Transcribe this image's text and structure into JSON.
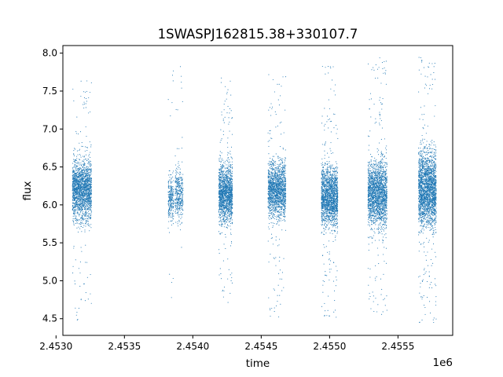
{
  "chart_data": {
    "type": "scatter",
    "title": "1SWASPJ162815.38+330107.7",
    "xlabel": "time",
    "ylabel": "flux",
    "x_offset_label": "1e6",
    "xlim": [
      2.45305,
      2.4559
    ],
    "ylim": [
      4.28,
      8.1
    ],
    "x_ticks": [
      2.453,
      2.4535,
      2.454,
      2.4545,
      2.455,
      2.4555
    ],
    "x_tick_labels": [
      "2.4530",
      "2.4535",
      "2.4540",
      "2.4545",
      "2.4550",
      "2.4555"
    ],
    "y_ticks": [
      4.5,
      5.0,
      5.5,
      6.0,
      6.5,
      7.0,
      7.5,
      8.0
    ],
    "y_tick_labels": [
      "4.5",
      "5.0",
      "5.5",
      "6.0",
      "6.5",
      "7.0",
      "7.5",
      "8.0"
    ],
    "grid": false,
    "marker_color": "#1f77b4",
    "series": [
      {
        "clusters": [
          {
            "x_start": 2.45312,
            "x_end": 2.45326,
            "center": 6.2,
            "core_halfwidth": 0.6,
            "min": 4.45,
            "max": 7.65,
            "n": 1900
          },
          {
            "x_start": 2.45382,
            "x_end": 2.45386,
            "center": 6.1,
            "core_halfwidth": 0.5,
            "min": 4.7,
            "max": 7.9,
            "n": 260
          },
          {
            "x_start": 2.45387,
            "x_end": 2.45393,
            "center": 6.15,
            "core_halfwidth": 0.5,
            "min": 5.4,
            "max": 7.92,
            "n": 360
          },
          {
            "x_start": 2.45419,
            "x_end": 2.45429,
            "center": 6.15,
            "core_halfwidth": 0.6,
            "min": 4.7,
            "max": 7.72,
            "n": 1500
          },
          {
            "x_start": 2.45455,
            "x_end": 2.45468,
            "center": 6.2,
            "core_halfwidth": 0.55,
            "min": 4.5,
            "max": 7.72,
            "n": 1600
          },
          {
            "x_start": 2.45494,
            "x_end": 2.45506,
            "center": 6.1,
            "core_halfwidth": 0.6,
            "min": 4.48,
            "max": 7.85,
            "n": 1800
          },
          {
            "x_start": 2.45528,
            "x_end": 2.45542,
            "center": 6.15,
            "core_halfwidth": 0.65,
            "min": 4.55,
            "max": 7.95,
            "n": 2000
          },
          {
            "x_start": 2.45565,
            "x_end": 2.45578,
            "center": 6.2,
            "core_halfwidth": 0.75,
            "min": 4.45,
            "max": 7.95,
            "n": 2300
          }
        ]
      }
    ]
  }
}
